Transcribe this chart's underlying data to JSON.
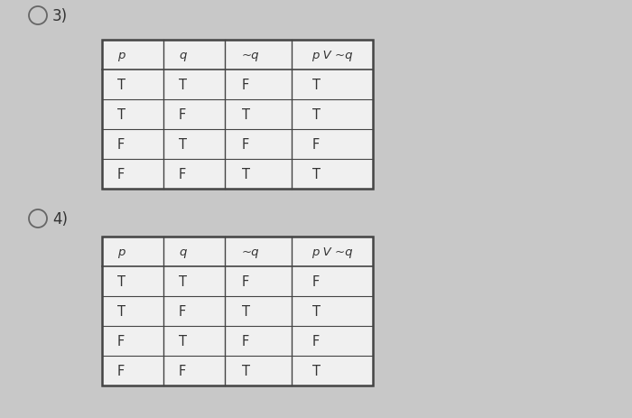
{
  "bg_color": "#c8c8c8",
  "title3": "3)",
  "title4": "4)",
  "table3_headers": [
    "p",
    "q",
    "~q",
    "p V ~q"
  ],
  "table3_rows": [
    [
      "T",
      "T",
      "F",
      "T"
    ],
    [
      "T",
      "F",
      "T",
      "T"
    ],
    [
      "F",
      "T",
      "F",
      "F"
    ],
    [
      "F",
      "F",
      "T",
      "T"
    ]
  ],
  "table4_headers": [
    "p",
    "q",
    "~q",
    "p V ~q"
  ],
  "table4_rows": [
    [
      "T",
      "T",
      "F",
      "F"
    ],
    [
      "T",
      "F",
      "T",
      "T"
    ],
    [
      "F",
      "T",
      "F",
      "F"
    ],
    [
      "F",
      "F",
      "T",
      "T"
    ]
  ],
  "font_size": 10.5,
  "header_font_size": 9.5,
  "table_bg": "#f0f0f0",
  "border_color": "#444444",
  "text_color": "#333333",
  "circle_color": "#666666",
  "label_fontsize": 12
}
